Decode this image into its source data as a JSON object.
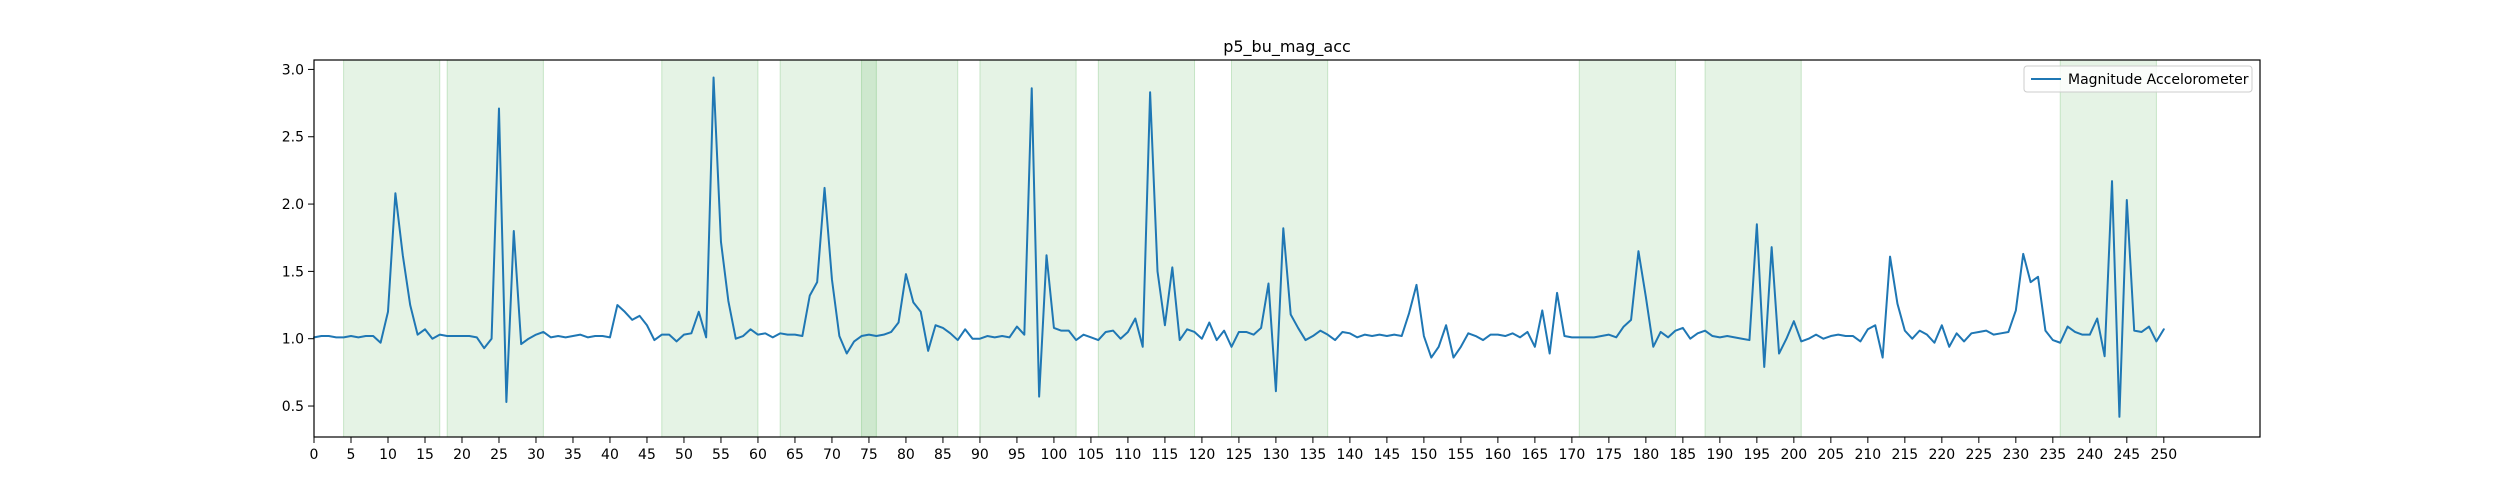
{
  "chart_data": {
    "type": "line",
    "title": "p5_bu_mag_acc",
    "xlabel": "",
    "ylabel": "",
    "xlim": [
      0,
      263
    ],
    "ylim": [
      0.27,
      3.07
    ],
    "x_ticks": [
      0,
      5,
      10,
      15,
      20,
      25,
      30,
      35,
      40,
      45,
      50,
      55,
      60,
      65,
      70,
      75,
      80,
      85,
      90,
      95,
      100,
      105,
      110,
      115,
      120,
      125,
      130,
      135,
      140,
      145,
      150,
      155,
      160,
      165,
      170,
      175,
      180,
      185,
      190,
      195,
      200,
      205,
      210,
      215,
      220,
      225,
      230,
      235,
      240,
      245,
      250
    ],
    "y_ticks": [
      0.5,
      1.0,
      1.5,
      2.0,
      2.5,
      3.0
    ],
    "y_tick_labels": [
      "0.5",
      "1.0",
      "1.5",
      "2.0",
      "2.5",
      "3.0"
    ],
    "grid": false,
    "legend": {
      "position": "top-right",
      "entries": [
        "Magnitude Accelorometer"
      ]
    },
    "line_color": "#1f77b4",
    "shade_color": "#2ca02c",
    "shaded_regions": [
      [
        4,
        17
      ],
      [
        18,
        31
      ],
      [
        47,
        60
      ],
      [
        63,
        76
      ],
      [
        74,
        87
      ],
      [
        90,
        103
      ],
      [
        106,
        119
      ],
      [
        124,
        137
      ],
      [
        171,
        184
      ],
      [
        188,
        201
      ],
      [
        236,
        249
      ]
    ],
    "series": [
      {
        "name": "Magnitude Accelorometer",
        "x": [
          0,
          1,
          2,
          3,
          4,
          5,
          6,
          7,
          8,
          9,
          10,
          11,
          12,
          13,
          14,
          15,
          16,
          17,
          18,
          19,
          20,
          21,
          22,
          23,
          24,
          25,
          26,
          27,
          28,
          29,
          30,
          31,
          32,
          33,
          34,
          35,
          36,
          37,
          38,
          39,
          40,
          41,
          42,
          43,
          44,
          45,
          46,
          47,
          48,
          49,
          50,
          51,
          52,
          53,
          54,
          55,
          56,
          57,
          58,
          59,
          60,
          61,
          62,
          63,
          64,
          65,
          66,
          67,
          68,
          69,
          70,
          71,
          72,
          73,
          74,
          75,
          76,
          77,
          78,
          79,
          80,
          81,
          82,
          83,
          84,
          85,
          86,
          87,
          88,
          89,
          90,
          91,
          92,
          93,
          94,
          95,
          96,
          97,
          98,
          99,
          100,
          101,
          102,
          103,
          104,
          105,
          106,
          107,
          108,
          109,
          110,
          111,
          112,
          113,
          114,
          115,
          116,
          117,
          118,
          119,
          120,
          121,
          122,
          123,
          124,
          125,
          126,
          127,
          128,
          129,
          130,
          131,
          132,
          133,
          134,
          135,
          136,
          137,
          138,
          139,
          140,
          141,
          142,
          143,
          144,
          145,
          146,
          147,
          148,
          149,
          150,
          151,
          152,
          153,
          154,
          155,
          156,
          157,
          158,
          159,
          160,
          161,
          162,
          163,
          164,
          165,
          166,
          167,
          168,
          169,
          170,
          171,
          172,
          173,
          174,
          175,
          176,
          177,
          178,
          179,
          180,
          181,
          182,
          183,
          184,
          185,
          186,
          187,
          188,
          189,
          190,
          191,
          192,
          193,
          194,
          195,
          196,
          197,
          198,
          199,
          200,
          201,
          202,
          203,
          204,
          205,
          206,
          207,
          208,
          209,
          210,
          211,
          212,
          213,
          214,
          215,
          216,
          217,
          218,
          219,
          220,
          221,
          222,
          223,
          224,
          225,
          226,
          227,
          228,
          229,
          230,
          231,
          232,
          233,
          234,
          235,
          236,
          237,
          238,
          239,
          240,
          241,
          242,
          243,
          244,
          245,
          246,
          247,
          248,
          249,
          250
        ],
        "y": [
          1.01,
          1.02,
          1.02,
          1.01,
          1.01,
          1.02,
          1.01,
          1.02,
          1.02,
          0.97,
          1.2,
          2.08,
          1.62,
          1.25,
          1.03,
          1.07,
          1.0,
          1.03,
          1.02,
          1.02,
          1.02,
          1.02,
          1.01,
          0.93,
          1.0,
          2.71,
          0.53,
          1.8,
          0.96,
          1.0,
          1.03,
          1.05,
          1.01,
          1.02,
          1.01,
          1.02,
          1.03,
          1.01,
          1.02,
          1.02,
          1.01,
          1.25,
          1.2,
          1.14,
          1.17,
          1.1,
          0.99,
          1.03,
          1.03,
          0.98,
          1.03,
          1.04,
          1.2,
          1.01,
          2.94,
          1.72,
          1.28,
          1.0,
          1.02,
          1.07,
          1.03,
          1.04,
          1.01,
          1.04,
          1.03,
          1.03,
          1.02,
          1.32,
          1.42,
          2.12,
          1.44,
          1.02,
          0.89,
          0.98,
          1.02,
          1.03,
          1.02,
          1.03,
          1.05,
          1.12,
          1.48,
          1.27,
          1.2,
          0.91,
          1.1,
          1.08,
          1.04,
          0.99,
          1.07,
          1.0,
          1.0,
          1.02,
          1.01,
          1.02,
          1.01,
          1.09,
          1.03,
          2.86,
          0.57,
          1.62,
          1.08,
          1.06,
          1.06,
          0.99,
          1.03,
          1.01,
          0.99,
          1.05,
          1.06,
          1.0,
          1.05,
          1.15,
          0.94,
          2.83,
          1.5,
          1.1,
          1.53,
          0.99,
          1.07,
          1.05,
          1.0,
          1.12,
          0.99,
          1.06,
          0.94,
          1.05,
          1.05,
          1.03,
          1.08,
          1.41,
          0.61,
          1.82,
          1.18,
          1.08,
          0.99,
          1.02,
          1.06,
          1.03,
          0.99,
          1.05,
          1.04,
          1.01,
          1.03,
          1.02,
          1.03,
          1.02,
          1.03,
          1.02,
          1.19,
          1.4,
          1.02,
          0.86,
          0.94,
          1.1,
          0.86,
          0.94,
          1.04,
          1.02,
          0.99,
          1.03,
          1.03,
          1.02,
          1.04,
          1.01,
          1.05,
          0.94,
          1.21,
          0.89,
          1.34,
          1.02,
          1.01,
          1.01,
          1.01,
          1.01,
          1.02,
          1.03,
          1.01,
          1.09,
          1.14,
          1.65,
          1.31,
          0.94,
          1.05,
          1.01,
          1.06,
          1.08,
          1.0,
          1.04,
          1.06,
          1.02,
          1.01,
          1.02,
          1.01,
          1.0,
          0.99,
          1.85,
          0.79,
          1.68,
          0.89,
          1.0,
          1.13,
          0.98,
          1.0,
          1.03,
          1.0,
          1.02,
          1.03,
          1.02,
          1.02,
          0.98,
          1.07,
          1.1,
          0.86,
          1.61,
          1.26,
          1.06,
          1.0,
          1.06,
          1.03,
          0.97,
          1.1,
          0.94,
          1.04,
          0.98,
          1.04,
          1.05,
          1.06,
          1.03,
          1.04,
          1.05,
          1.21,
          1.63,
          1.42,
          1.46,
          1.06,
          0.99,
          0.97,
          1.09,
          1.05,
          1.03,
          1.03,
          1.15,
          0.87,
          2.17,
          0.42,
          2.03,
          1.06,
          1.05,
          1.09,
          0.98,
          1.07
        ]
      }
    ]
  }
}
